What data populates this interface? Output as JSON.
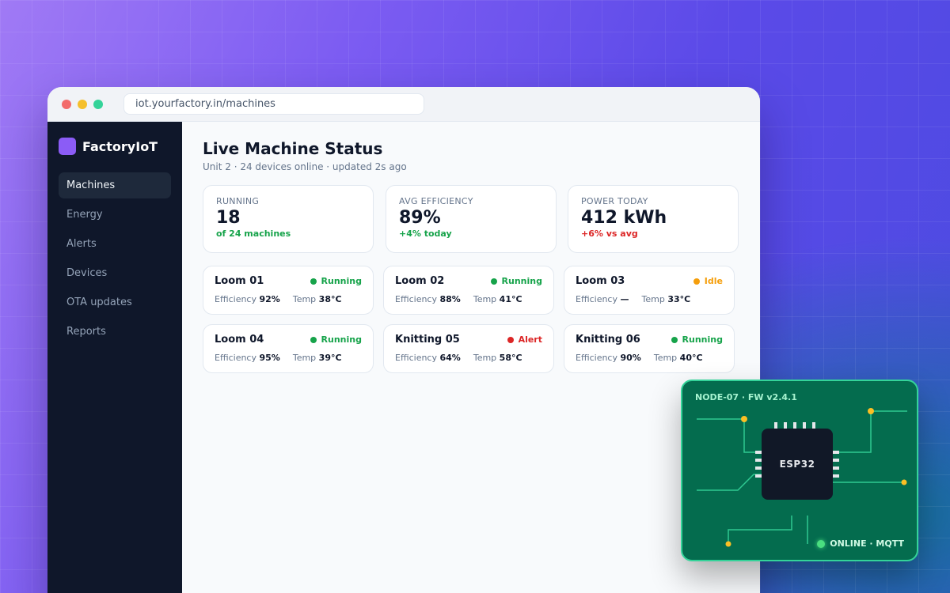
{
  "browser": {
    "url": "iot.yourfactory.in/machines"
  },
  "sidebar": {
    "brand": "FactoryIoT",
    "items": [
      {
        "label": "Machines",
        "active": true
      },
      {
        "label": "Energy"
      },
      {
        "label": "Alerts"
      },
      {
        "label": "Devices"
      },
      {
        "label": "OTA updates"
      },
      {
        "label": "Reports"
      }
    ]
  },
  "main": {
    "title": "Live Machine Status",
    "subtitle": "Unit 2 · 24 devices online · updated 2s ago",
    "stats": [
      {
        "label": "RUNNING",
        "value": "18",
        "delta": "of 24 machines",
        "delta_color": "#16a34a"
      },
      {
        "label": "AVG EFFICIENCY",
        "value": "89%",
        "delta": "+4% today",
        "delta_color": "#16a34a"
      },
      {
        "label": "POWER TODAY",
        "value": "412 kWh",
        "delta": "+6% vs avg",
        "delta_color": "#dc2626"
      }
    ],
    "metric_labels": {
      "efficiency": "Efficiency",
      "temp": "Temp"
    },
    "machines": [
      {
        "name": "Loom 01",
        "status": "Running",
        "status_color": "#16a34a",
        "efficiency": "92%",
        "temp": "38°C"
      },
      {
        "name": "Loom 02",
        "status": "Running",
        "status_color": "#16a34a",
        "efficiency": "88%",
        "temp": "41°C"
      },
      {
        "name": "Loom 03",
        "status": "Idle",
        "status_color": "#f59e0b",
        "efficiency": "—",
        "temp": "33°C"
      },
      {
        "name": "Loom 04",
        "status": "Running",
        "status_color": "#16a34a",
        "efficiency": "95%",
        "temp": "39°C"
      },
      {
        "name": "Knitting 05",
        "status": "Alert",
        "status_color": "#dc2626",
        "efficiency": "64%",
        "temp": "58°C"
      },
      {
        "name": "Knitting 06",
        "status": "Running",
        "status_color": "#16a34a",
        "efficiency": "90%",
        "temp": "40°C"
      }
    ]
  },
  "hardware": {
    "title": "NODE-07 · FW v2.4.1",
    "chip_label": "ESP32",
    "status": "ONLINE · MQTT",
    "status_color": "#4ade80"
  }
}
